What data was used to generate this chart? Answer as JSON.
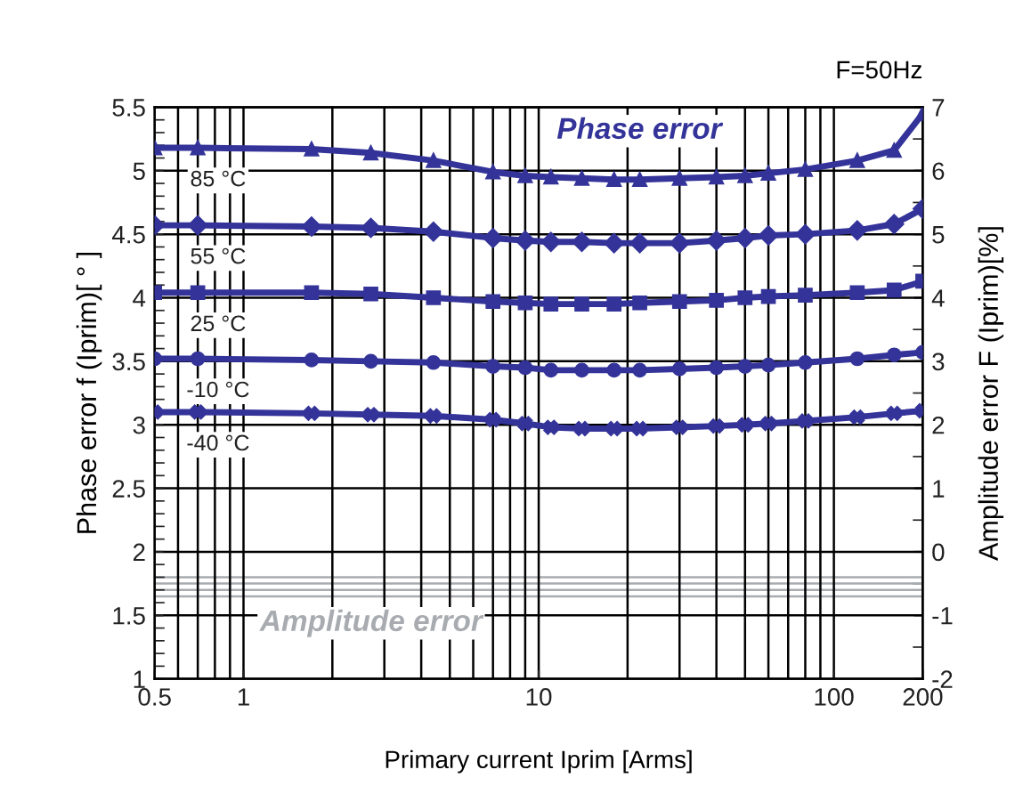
{
  "chart_data": {
    "type": "line",
    "xlabel": "Primary current Iprim [Arms]",
    "ylabel": "Phase error f (Iprim)[ ° ]",
    "y2label": "Amplitude error F (Iprim)[%]",
    "log": "x",
    "grid": true,
    "line_style": "solid",
    "xlim": [
      0.5,
      200
    ],
    "xticks": [
      0.5,
      {
        "value": 0.6,
        "label": null
      },
      {
        "value": 0.7,
        "label": null
      },
      {
        "value": 0.8,
        "label": null
      },
      {
        "value": 0.9,
        "label": null
      },
      1,
      {
        "value": 2,
        "label": null
      },
      {
        "value": 3,
        "label": null
      },
      {
        "value": 4,
        "label": null
      },
      {
        "value": 5,
        "label": null
      },
      {
        "value": 6,
        "label": null
      },
      {
        "value": 7,
        "label": null
      },
      {
        "value": 8,
        "label": null
      },
      {
        "value": 9,
        "label": null
      },
      10,
      {
        "value": 20,
        "label": null
      },
      {
        "value": 30,
        "label": null
      },
      {
        "value": 40,
        "label": null
      },
      {
        "value": 50,
        "label": null
      },
      {
        "value": 60,
        "label": null
      },
      {
        "value": 70,
        "label": null
      },
      {
        "value": 80,
        "label": null
      },
      {
        "value": 90,
        "label": null
      },
      100,
      200
    ],
    "ylim": [
      1,
      5.5
    ],
    "yticks": [
      1,
      {
        "value": 1.1,
        "label": null
      },
      {
        "value": 1.2,
        "label": null
      },
      {
        "value": 1.3,
        "label": null
      },
      {
        "value": 1.4,
        "label": null
      },
      1.5,
      {
        "value": 1.6,
        "label": null
      },
      {
        "value": 1.7,
        "label": null
      },
      {
        "value": 1.8,
        "label": null
      },
      {
        "value": 1.9,
        "label": null
      },
      2,
      {
        "value": 2.1,
        "label": null
      },
      {
        "value": 2.2,
        "label": null
      },
      {
        "value": 2.3,
        "label": null
      },
      {
        "value": 2.4,
        "label": null
      },
      2.5,
      {
        "value": 2.6,
        "label": null
      },
      {
        "value": 2.7,
        "label": null
      },
      {
        "value": 2.8,
        "label": null
      },
      {
        "value": 2.9,
        "label": null
      },
      3,
      {
        "value": 3.1,
        "label": null
      },
      {
        "value": 3.2,
        "label": null
      },
      {
        "value": 3.3,
        "label": null
      },
      {
        "value": 3.4,
        "label": null
      },
      3.5,
      {
        "value": 3.6,
        "label": null
      },
      {
        "value": 3.7,
        "label": null
      },
      {
        "value": 3.8,
        "label": null
      },
      {
        "value": 3.9,
        "label": null
      },
      4,
      {
        "value": 4.1,
        "label": null
      },
      {
        "value": 4.2,
        "label": null
      },
      {
        "value": 4.3,
        "label": null
      },
      {
        "value": 4.4,
        "label": null
      },
      4.5,
      {
        "value": 4.6,
        "label": null
      },
      {
        "value": 4.7,
        "label": null
      },
      {
        "value": 4.8,
        "label": null
      },
      {
        "value": 4.9,
        "label": null
      },
      5,
      {
        "value": 5.1,
        "label": null
      },
      {
        "value": 5.2,
        "label": null
      },
      {
        "value": 5.3,
        "label": null
      },
      {
        "value": 5.4,
        "label": null
      },
      5.5
    ],
    "y2lim": [
      -2,
      7
    ],
    "y2ticks": [
      -2,
      {
        "value": -1.5,
        "label": null
      },
      -1,
      {
        "value": -0.5,
        "label": null
      },
      0,
      {
        "value": 0.5,
        "label": null
      },
      1,
      {
        "value": 1.5,
        "label": null
      },
      2,
      {
        "value": 2.5,
        "label": null
      },
      3,
      {
        "value": 3.5,
        "label": null
      },
      4,
      {
        "value": 4.5,
        "label": null
      },
      5,
      {
        "value": 5.5,
        "label": null
      },
      6,
      {
        "value": 6.5,
        "label": null
      },
      7
    ],
    "x": [
      0.5,
      0.7,
      1.7,
      2.7,
      4.4,
      7,
      9,
      11,
      14,
      18,
      22,
      30,
      40,
      50,
      60,
      80,
      120,
      160,
      200
    ],
    "series": [
      {
        "color": "#333399",
        "marker": "triangle",
        "values": [
          5.18,
          5.18,
          5.17,
          5.14,
          5.08,
          4.99,
          4.96,
          4.95,
          4.94,
          4.93,
          4.93,
          4.94,
          4.95,
          4.96,
          4.98,
          5.01,
          5.08,
          5.16,
          5.45
        ]
      },
      {
        "color": "#333399",
        "marker": "diamond",
        "values": [
          4.57,
          4.57,
          4.56,
          4.55,
          4.52,
          4.47,
          4.45,
          4.44,
          4.44,
          4.43,
          4.43,
          4.43,
          4.45,
          4.47,
          4.49,
          4.5,
          4.53,
          4.58,
          4.7
        ]
      },
      {
        "color": "#333399",
        "marker": "square",
        "values": [
          4.04,
          4.04,
          4.04,
          4.03,
          4.0,
          3.97,
          3.96,
          3.95,
          3.95,
          3.95,
          3.96,
          3.97,
          3.98,
          4.0,
          4.01,
          4.02,
          4.04,
          4.06,
          4.13
        ]
      },
      {
        "color": "#333399",
        "marker": "circle",
        "values": [
          3.52,
          3.52,
          3.51,
          3.5,
          3.49,
          3.46,
          3.45,
          3.43,
          3.43,
          3.43,
          3.43,
          3.44,
          3.45,
          3.46,
          3.47,
          3.49,
          3.52,
          3.55,
          3.57
        ]
      },
      {
        "color": "#333399",
        "marker": "cross",
        "values": [
          3.1,
          3.1,
          3.09,
          3.08,
          3.07,
          3.04,
          3.01,
          2.98,
          2.97,
          2.97,
          2.97,
          2.98,
          2.99,
          3.0,
          3.01,
          3.03,
          3.06,
          3.09,
          3.11
        ]
      },
      {
        "color": "#a8acb0",
        "marker": "none",
        "axis": "y2",
        "values": [
          -0.4,
          -0.4,
          -0.4,
          -0.4,
          -0.4,
          -0.4,
          -0.4,
          -0.4,
          -0.4,
          -0.4,
          -0.4,
          -0.4,
          -0.4,
          -0.4,
          -0.4,
          -0.4,
          -0.4,
          -0.4,
          -0.4
        ]
      },
      {
        "color": "#a8acb0",
        "marker": "none",
        "axis": "y2",
        "values": [
          -0.5,
          -0.5,
          -0.5,
          -0.5,
          -0.5,
          -0.5,
          -0.5,
          -0.5,
          -0.5,
          -0.5,
          -0.5,
          -0.5,
          -0.5,
          -0.5,
          -0.5,
          -0.5,
          -0.5,
          -0.5,
          -0.5
        ]
      },
      {
        "color": "#a8acb0",
        "marker": "none",
        "axis": "y2",
        "values": [
          -0.6,
          -0.6,
          -0.6,
          -0.6,
          -0.6,
          -0.6,
          -0.6,
          -0.6,
          -0.6,
          -0.6,
          -0.6,
          -0.6,
          -0.6,
          -0.6,
          -0.6,
          -0.6,
          -0.6,
          -0.6,
          -0.6
        ]
      },
      {
        "color": "#a8acb0",
        "marker": "none",
        "axis": "y2",
        "values": [
          -0.7,
          -0.7,
          -0.7,
          -0.7,
          -0.7,
          -0.7,
          -0.7,
          -0.7,
          -0.7,
          -0.7,
          -0.7,
          -0.7,
          -0.7,
          -0.7,
          -0.7,
          -0.7,
          -0.7,
          -0.7,
          -0.7
        ]
      }
    ],
    "annotations": [
      "F=50Hz",
      "85 °C",
      "55 °C",
      "25 °C",
      "-10 °C",
      "-40 °C",
      "Phase error",
      "Amplitude error"
    ]
  }
}
